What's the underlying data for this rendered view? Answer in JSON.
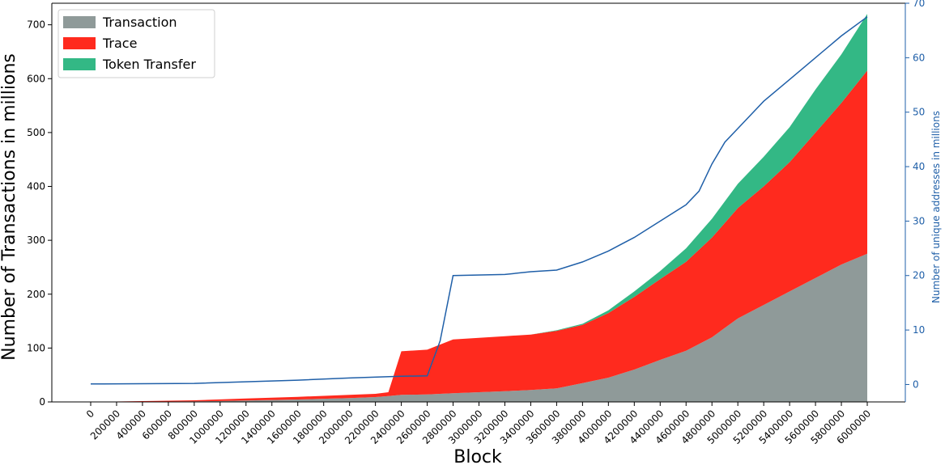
{
  "chart_data": {
    "type": "area",
    "xlabel": "Block",
    "ylabel": "Number of Transactions in millions",
    "y2label": "Number of unique addresses in millions",
    "xlim": [
      0,
      6000000
    ],
    "ylim": [
      0,
      740
    ],
    "y2lim": [
      -3.2,
      70
    ],
    "x_ticks": [
      0,
      200000,
      400000,
      600000,
      800000,
      1000000,
      1200000,
      1400000,
      1600000,
      1800000,
      2000000,
      2200000,
      2400000,
      2600000,
      2800000,
      3000000,
      3200000,
      3400000,
      3600000,
      3800000,
      4000000,
      4200000,
      4400000,
      4600000,
      4800000,
      5000000,
      5200000,
      5400000,
      5600000,
      5800000,
      6000000
    ],
    "x_tick_labels": [
      "0",
      "200000",
      "400000",
      "600000",
      "800000",
      "1000000",
      "1200000",
      "1400000",
      "1600000",
      "1800000",
      "2000000",
      "2200000",
      "2400000",
      "2600000",
      "2800000",
      "3000000",
      "3200000",
      "3400000",
      "3600000",
      "3800000",
      "4000000",
      "4200000",
      "4400000",
      "4600000",
      "4800000",
      "5000000",
      "5200000",
      "5400000",
      "5600000",
      "5800000",
      "6000000"
    ],
    "y_ticks": [
      0,
      100,
      200,
      300,
      400,
      500,
      600,
      700
    ],
    "y_tick_labels": [
      "0",
      "100",
      "200",
      "300",
      "400",
      "500",
      "600",
      "700"
    ],
    "y2_ticks": [
      0,
      10,
      20,
      30,
      40,
      50,
      60,
      70
    ],
    "y2_tick_labels": [
      "0",
      "10",
      "20",
      "30",
      "40",
      "50",
      "60",
      "70"
    ],
    "legend_position": "top-left",
    "x": [
      0,
      400000,
      800000,
      1200000,
      1600000,
      2000000,
      2200000,
      2300000,
      2400000,
      2600000,
      2800000,
      3000000,
      3200000,
      3400000,
      3600000,
      3800000,
      4000000,
      4200000,
      4400000,
      4600000,
      4800000,
      5000000,
      5200000,
      5400000,
      5600000,
      5800000,
      6000000
    ],
    "series": [
      {
        "name": "Transaction",
        "color": "#8f9a99",
        "values": [
          0,
          0.5,
          1,
          2.5,
          4.5,
          7,
          9,
          11,
          13,
          14,
          16,
          18,
          20,
          22,
          25,
          35,
          45,
          60,
          78,
          95,
          120,
          155,
          180,
          205,
          230,
          255,
          275
        ]
      },
      {
        "name": "Trace",
        "color": "#ff2a1e",
        "values": [
          0,
          1,
          2,
          4,
          5,
          6,
          6,
          7,
          81,
          83,
          100,
          101,
          102,
          103,
          107,
          108,
          120,
          135,
          150,
          165,
          185,
          205,
          220,
          240,
          270,
          300,
          340
        ]
      },
      {
        "name": "Token Transfer",
        "color": "#33b885",
        "values": [
          0,
          0,
          0,
          0,
          0,
          0,
          0,
          0,
          0,
          0,
          0,
          0,
          0,
          0,
          1,
          2,
          5,
          10,
          15,
          25,
          35,
          45,
          55,
          65,
          80,
          90,
          105
        ]
      }
    ],
    "line_series": {
      "name": "Number of unique addresses in millions",
      "color": "#1f5fa8",
      "axis": "right",
      "x": [
        0,
        800000,
        1600000,
        2000000,
        2400000,
        2600000,
        2700000,
        2800000,
        3200000,
        3400000,
        3600000,
        3800000,
        4000000,
        4200000,
        4400000,
        4600000,
        4700000,
        4800000,
        4900000,
        5000000,
        5200000,
        5400000,
        5600000,
        5800000,
        6000000
      ],
      "values": [
        0.1,
        0.2,
        0.8,
        1.2,
        1.5,
        1.6,
        8,
        20,
        20.2,
        20.7,
        21,
        22.5,
        24.5,
        27,
        30,
        33,
        35.5,
        40.5,
        44.5,
        47,
        52,
        56,
        60,
        64,
        67.5
      ]
    }
  }
}
